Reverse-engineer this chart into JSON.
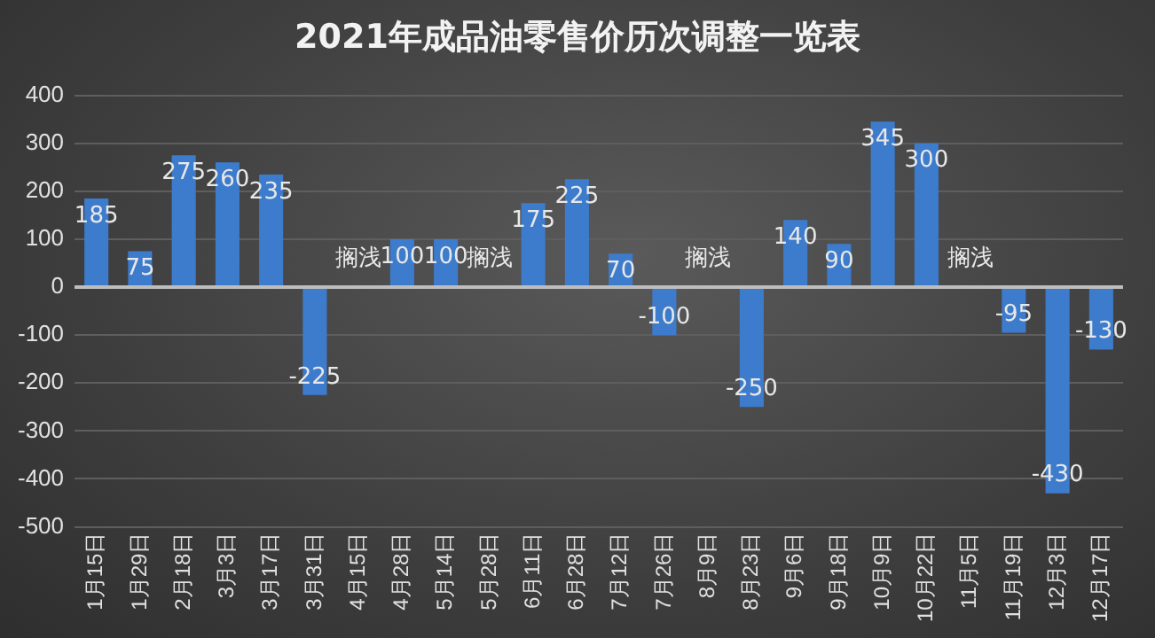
{
  "chart_data": {
    "type": "bar",
    "title": "2021年成品油零售价历次调整一览表",
    "categories": [
      "1月15日",
      "1月29日",
      "2月18日",
      "3月3日",
      "3月17日",
      "3月31日",
      "4月15日",
      "4月28日",
      "5月14日",
      "5月28日",
      "6月11日",
      "6月28日",
      "7月12日",
      "7月26日",
      "8月9日",
      "8月23日",
      "9月6日",
      "9月18日",
      "10月9日",
      "10月22日",
      "11月5日",
      "11月19日",
      "12月3日",
      "12月17日"
    ],
    "values": [
      185,
      75,
      275,
      260,
      235,
      -225,
      0,
      100,
      100,
      0,
      175,
      225,
      70,
      -100,
      0,
      -250,
      140,
      90,
      345,
      300,
      0,
      -95,
      -430,
      -130
    ],
    "value_labels": [
      "185",
      "75",
      "275",
      "260",
      "235",
      "-225",
      "搁浅",
      "100",
      "100",
      "搁浅",
      "175",
      "225",
      "70",
      "-100",
      "搁浅",
      "-250",
      "140",
      "90",
      "345",
      "300",
      "搁浅",
      "-95",
      "-430",
      "-130"
    ],
    "color": "#3d7ccc",
    "ylim": [
      -500,
      400
    ],
    "yticks": [
      -500,
      -400,
      -300,
      -200,
      -100,
      0,
      100,
      200,
      300,
      400
    ],
    "grid": "y"
  }
}
